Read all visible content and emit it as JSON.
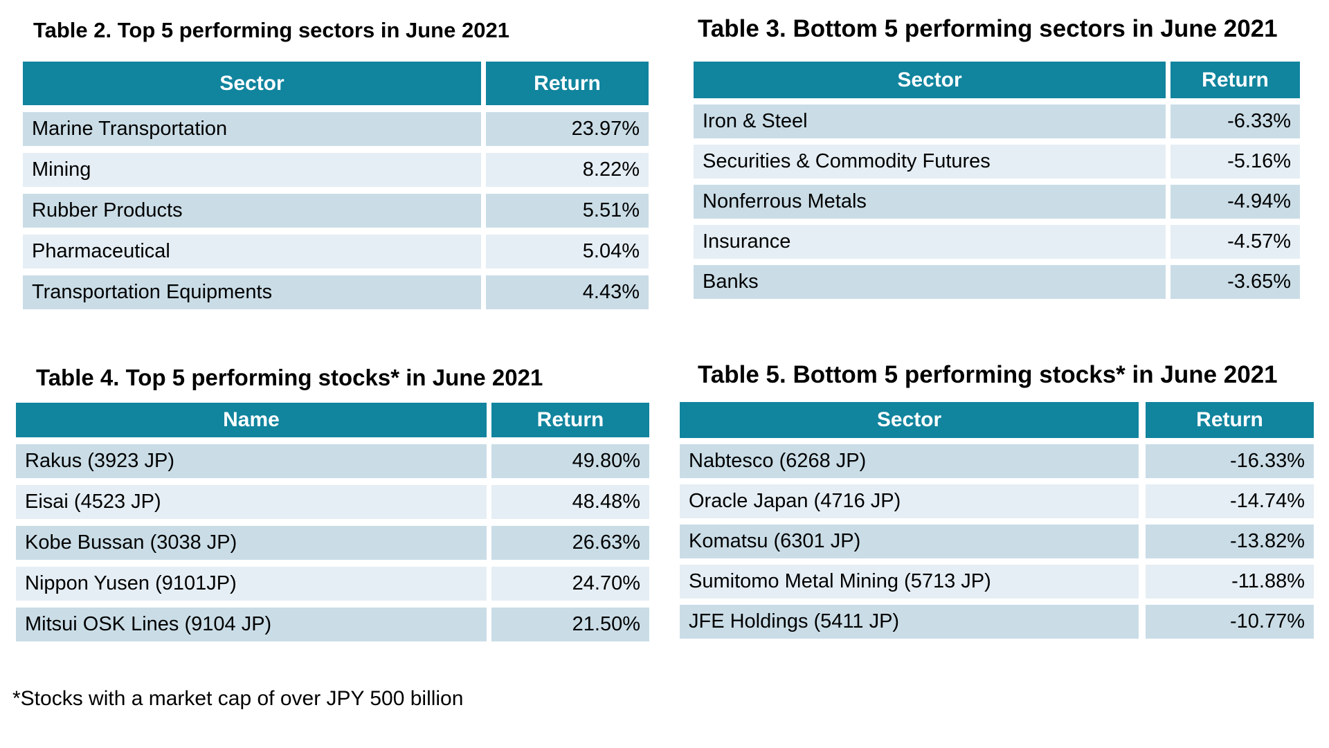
{
  "colors": {
    "header_teal": "#11849E",
    "header_text": "#FFFFFF",
    "row_dark": "#CADDE7",
    "row_light": "#E5EEF4",
    "body_text": "#000000",
    "page_background": "#FFFFFF"
  },
  "tables": {
    "t2": {
      "title": "Table 2. Top 5 performing sectors in June 2021",
      "columns": [
        "Sector",
        "Return"
      ],
      "rows": [
        {
          "name": "Marine Transportation",
          "return": "23.97%"
        },
        {
          "name": "Mining",
          "return": "8.22%"
        },
        {
          "name": "Rubber Products",
          "return": "5.51%"
        },
        {
          "name": "Pharmaceutical",
          "return": "5.04%"
        },
        {
          "name": "Transportation Equipments",
          "return": "4.43%"
        }
      ]
    },
    "t3": {
      "title": "Table 3. Bottom 5 performing sectors in June 2021",
      "columns": [
        "Sector",
        "Return"
      ],
      "rows": [
        {
          "name": "Iron & Steel",
          "return": "-6.33%"
        },
        {
          "name": "Securities & Commodity Futures",
          "return": "-5.16%"
        },
        {
          "name": "Nonferrous Metals",
          "return": "-4.94%"
        },
        {
          "name": "Insurance",
          "return": "-4.57%"
        },
        {
          "name": "Banks",
          "return": "-3.65%"
        }
      ]
    },
    "t4": {
      "title": "Table 4. Top 5 performing stocks* in June 2021",
      "columns": [
        "Name",
        "Return"
      ],
      "rows": [
        {
          "name": "Rakus (3923 JP)",
          "return": "49.80%"
        },
        {
          "name": "Eisai (4523 JP)",
          "return": "48.48%"
        },
        {
          "name": "Kobe Bussan (3038 JP)",
          "return": "26.63%"
        },
        {
          "name": "Nippon Yusen (9101JP)",
          "return": "24.70%"
        },
        {
          "name": "Mitsui OSK Lines (9104 JP)",
          "return": "21.50%"
        }
      ]
    },
    "t5": {
      "title": "Table 5. Bottom 5 performing stocks* in June 2021",
      "columns": [
        "Sector",
        "Return"
      ],
      "rows": [
        {
          "name": "Nabtesco (6268 JP)",
          "return": "-16.33%"
        },
        {
          "name": "Oracle Japan (4716 JP)",
          "return": "-14.74%"
        },
        {
          "name": "Komatsu (6301 JP)",
          "return": "-13.82%"
        },
        {
          "name": "Sumitomo Metal Mining (5713 JP)",
          "return": "-11.88%"
        },
        {
          "name": "JFE Holdings (5411 JP)",
          "return": "-10.77%"
        }
      ]
    }
  },
  "footnote": "*Stocks with a market cap of over JPY 500 billion"
}
